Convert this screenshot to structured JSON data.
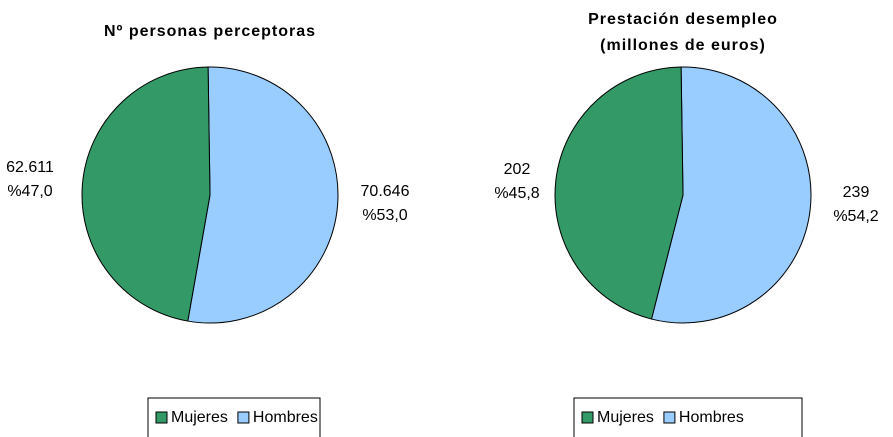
{
  "chart_data": [
    {
      "type": "pie",
      "title": "Nº personas perceptoras",
      "categories": [
        "Mujeres",
        "Hombres"
      ],
      "values": [
        62611,
        70646
      ],
      "value_labels": [
        "62.611",
        "70.646"
      ],
      "percentages": [
        47.0,
        53.0
      ],
      "percentage_labels": [
        "%47,0",
        "%53,0"
      ],
      "colors": [
        "#339966",
        "#99ccff"
      ],
      "legend": "bottom"
    },
    {
      "type": "pie",
      "title": "Prestación desempleo",
      "subtitle": "(millones de euros)",
      "categories": [
        "Mujeres",
        "Hombres"
      ],
      "values": [
        202,
        239
      ],
      "value_labels": [
        "202",
        "239"
      ],
      "percentages": [
        45.8,
        54.2
      ],
      "percentage_labels": [
        "%45,8",
        "%54,2"
      ],
      "colors": [
        "#339966",
        "#99ccff"
      ],
      "legend": "bottom"
    }
  ]
}
